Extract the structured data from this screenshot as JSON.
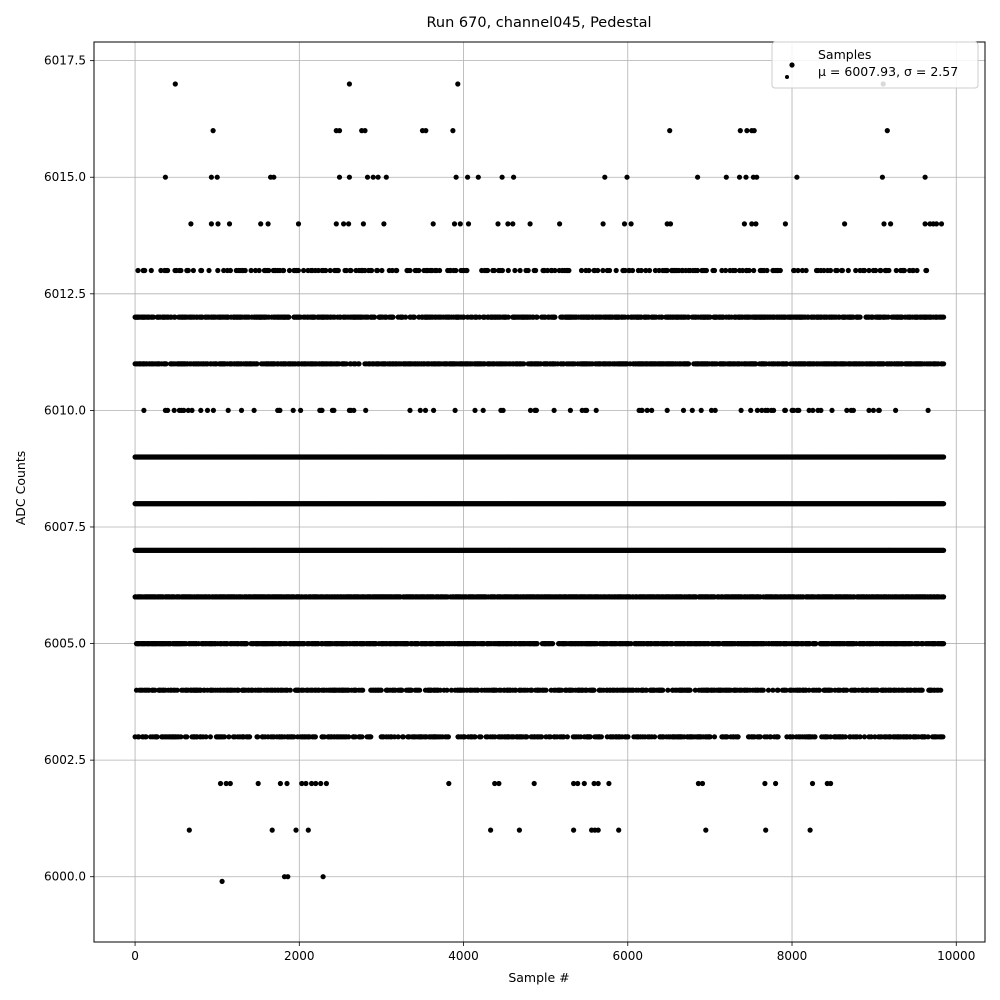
{
  "chart_data": {
    "type": "scatter",
    "title": "Run 670, channel045, Pedestal",
    "xlabel": "Sample #",
    "ylabel": "ADC Counts",
    "xlim": [
      -500,
      10350
    ],
    "ylim": [
      5998.6,
      6017.9
    ],
    "xticks": [
      0,
      2000,
      4000,
      6000,
      8000,
      10000
    ],
    "xtick_labels": [
      "0",
      "2000",
      "4000",
      "6000",
      "8000",
      "10000"
    ],
    "yticks": [
      6000.0,
      6002.5,
      6005.0,
      6007.5,
      6010.0,
      6012.5,
      6015.0,
      6017.5
    ],
    "ytick_labels": [
      "6000.0",
      "6002.5",
      "6005.0",
      "6007.5",
      "6010.0",
      "6012.5",
      "6015.0",
      "6017.5"
    ],
    "grid": true,
    "marker_color": "#000000",
    "legend": {
      "placement": "upper-right",
      "entries": [
        {
          "label": "Samples",
          "color": "#000000"
        },
        {
          "label": "μ = 6007.93, σ = 2.57",
          "color": "#c8c8c8"
        }
      ]
    },
    "series": [
      {
        "name": "Samples",
        "levels": [
          {
            "y": 6012,
            "x_start": 0,
            "x_end": 9850,
            "density": 0.55
          },
          {
            "y": 6011,
            "x_start": 0,
            "x_end": 9850,
            "density": 0.65
          },
          {
            "y": 6010,
            "x_start": 0,
            "x_end": 9850,
            "density": 0.08
          },
          {
            "y": 6009,
            "x_start": 0,
            "x_end": 9850,
            "density": 1.0
          },
          {
            "y": 6008,
            "x_start": 0,
            "x_end": 9850,
            "density": 1.0
          },
          {
            "y": 6007,
            "x_start": 0,
            "x_end": 9850,
            "density": 1.0
          },
          {
            "y": 6006,
            "x_start": 0,
            "x_end": 9850,
            "density": 0.8
          },
          {
            "y": 6005,
            "x_start": 0,
            "x_end": 9850,
            "density": 0.7
          },
          {
            "y": 6004,
            "x_start": 0,
            "x_end": 9850,
            "density": 0.45
          },
          {
            "y": 6003,
            "x_start": 0,
            "x_end": 9850,
            "density": 0.4
          },
          {
            "y": 6013,
            "x_start": 0,
            "x_end": 9850,
            "density": 0.2
          }
        ],
        "points": [
          {
            "x": 490,
            "y": 6017
          },
          {
            "x": 2610,
            "y": 6017
          },
          {
            "x": 3930,
            "y": 6017
          },
          {
            "x": 9110,
            "y": 6017
          },
          {
            "x": 950,
            "y": 6016
          },
          {
            "x": 2450,
            "y": 6016
          },
          {
            "x": 2490,
            "y": 6016
          },
          {
            "x": 2760,
            "y": 6016
          },
          {
            "x": 2800,
            "y": 6016
          },
          {
            "x": 3500,
            "y": 6016
          },
          {
            "x": 3540,
            "y": 6016
          },
          {
            "x": 3870,
            "y": 6016
          },
          {
            "x": 6510,
            "y": 6016
          },
          {
            "x": 7370,
            "y": 6016
          },
          {
            "x": 7450,
            "y": 6016
          },
          {
            "x": 7510,
            "y": 6016
          },
          {
            "x": 7540,
            "y": 6016
          },
          {
            "x": 9160,
            "y": 6016
          },
          {
            "x": 370,
            "y": 6015
          },
          {
            "x": 930,
            "y": 6015
          },
          {
            "x": 1000,
            "y": 6015
          },
          {
            "x": 1650,
            "y": 6015
          },
          {
            "x": 1690,
            "y": 6015
          },
          {
            "x": 2490,
            "y": 6015
          },
          {
            "x": 2610,
            "y": 6015
          },
          {
            "x": 2830,
            "y": 6015
          },
          {
            "x": 2900,
            "y": 6015
          },
          {
            "x": 2960,
            "y": 6015
          },
          {
            "x": 3060,
            "y": 6015
          },
          {
            "x": 3910,
            "y": 6015
          },
          {
            "x": 4050,
            "y": 6015
          },
          {
            "x": 4180,
            "y": 6015
          },
          {
            "x": 4470,
            "y": 6015
          },
          {
            "x": 4610,
            "y": 6015
          },
          {
            "x": 5720,
            "y": 6015
          },
          {
            "x": 5990,
            "y": 6015
          },
          {
            "x": 6850,
            "y": 6015
          },
          {
            "x": 7200,
            "y": 6015
          },
          {
            "x": 7360,
            "y": 6015
          },
          {
            "x": 7440,
            "y": 6015
          },
          {
            "x": 7530,
            "y": 6015
          },
          {
            "x": 7570,
            "y": 6015
          },
          {
            "x": 8060,
            "y": 6015
          },
          {
            "x": 9100,
            "y": 6015
          },
          {
            "x": 9620,
            "y": 6015
          },
          {
            "x": 680,
            "y": 6014
          },
          {
            "x": 930,
            "y": 6014
          },
          {
            "x": 1010,
            "y": 6014
          },
          {
            "x": 1150,
            "y": 6014
          },
          {
            "x": 1530,
            "y": 6014
          },
          {
            "x": 1620,
            "y": 6014
          },
          {
            "x": 1990,
            "y": 6014
          },
          {
            "x": 2450,
            "y": 6014
          },
          {
            "x": 2540,
            "y": 6014
          },
          {
            "x": 2600,
            "y": 6014
          },
          {
            "x": 2780,
            "y": 6014
          },
          {
            "x": 3030,
            "y": 6014
          },
          {
            "x": 3630,
            "y": 6014
          },
          {
            "x": 3890,
            "y": 6014
          },
          {
            "x": 3960,
            "y": 6014
          },
          {
            "x": 4060,
            "y": 6014
          },
          {
            "x": 4420,
            "y": 6014
          },
          {
            "x": 4540,
            "y": 6014
          },
          {
            "x": 4600,
            "y": 6014
          },
          {
            "x": 4810,
            "y": 6014
          },
          {
            "x": 5170,
            "y": 6014
          },
          {
            "x": 5700,
            "y": 6014
          },
          {
            "x": 5960,
            "y": 6014
          },
          {
            "x": 6040,
            "y": 6014
          },
          {
            "x": 6480,
            "y": 6014
          },
          {
            "x": 6520,
            "y": 6014
          },
          {
            "x": 7420,
            "y": 6014
          },
          {
            "x": 7510,
            "y": 6014
          },
          {
            "x": 7560,
            "y": 6014
          },
          {
            "x": 7920,
            "y": 6014
          },
          {
            "x": 8640,
            "y": 6014
          },
          {
            "x": 9120,
            "y": 6014
          },
          {
            "x": 9200,
            "y": 6014
          },
          {
            "x": 9620,
            "y": 6014
          },
          {
            "x": 9680,
            "y": 6014
          },
          {
            "x": 9720,
            "y": 6014
          },
          {
            "x": 9760,
            "y": 6014
          },
          {
            "x": 9820,
            "y": 6014
          },
          {
            "x": 1040,
            "y": 6002
          },
          {
            "x": 1110,
            "y": 6002
          },
          {
            "x": 1160,
            "y": 6002
          },
          {
            "x": 1500,
            "y": 6002
          },
          {
            "x": 1770,
            "y": 6002
          },
          {
            "x": 1850,
            "y": 6002
          },
          {
            "x": 2030,
            "y": 6002
          },
          {
            "x": 2080,
            "y": 6002
          },
          {
            "x": 2150,
            "y": 6002
          },
          {
            "x": 2200,
            "y": 6002
          },
          {
            "x": 2260,
            "y": 6002
          },
          {
            "x": 2330,
            "y": 6002
          },
          {
            "x": 3820,
            "y": 6002
          },
          {
            "x": 4380,
            "y": 6002
          },
          {
            "x": 4430,
            "y": 6002
          },
          {
            "x": 4860,
            "y": 6002
          },
          {
            "x": 5340,
            "y": 6002
          },
          {
            "x": 5390,
            "y": 6002
          },
          {
            "x": 5470,
            "y": 6002
          },
          {
            "x": 5590,
            "y": 6002
          },
          {
            "x": 5640,
            "y": 6002
          },
          {
            "x": 5770,
            "y": 6002
          },
          {
            "x": 6860,
            "y": 6002
          },
          {
            "x": 6910,
            "y": 6002
          },
          {
            "x": 7670,
            "y": 6002
          },
          {
            "x": 7800,
            "y": 6002
          },
          {
            "x": 8250,
            "y": 6002
          },
          {
            "x": 8430,
            "y": 6002
          },
          {
            "x": 8470,
            "y": 6002
          },
          {
            "x": 660,
            "y": 6001
          },
          {
            "x": 1670,
            "y": 6001
          },
          {
            "x": 1960,
            "y": 6001
          },
          {
            "x": 2110,
            "y": 6001
          },
          {
            "x": 4330,
            "y": 6001
          },
          {
            "x": 4680,
            "y": 6001
          },
          {
            "x": 5340,
            "y": 6001
          },
          {
            "x": 5560,
            "y": 6001
          },
          {
            "x": 5600,
            "y": 6001
          },
          {
            "x": 5640,
            "y": 6001
          },
          {
            "x": 5890,
            "y": 6001
          },
          {
            "x": 6950,
            "y": 6001
          },
          {
            "x": 7680,
            "y": 6001
          },
          {
            "x": 8220,
            "y": 6001
          },
          {
            "x": 1820,
            "y": 6000
          },
          {
            "x": 1860,
            "y": 6000
          },
          {
            "x": 2290,
            "y": 6000
          },
          {
            "x": 1060,
            "y": 5999.9
          }
        ]
      }
    ]
  }
}
